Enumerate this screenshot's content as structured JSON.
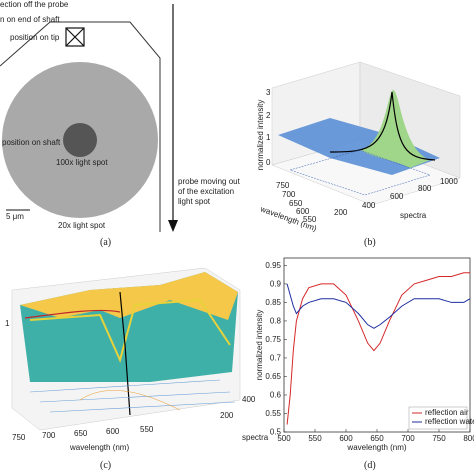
{
  "panel_a": {
    "labels": [
      "ection off the probe",
      "n on end of shaft",
      "position on tip",
      "position on shaft",
      "100x light spot",
      "5 μm",
      "20x light spot"
    ],
    "arrow_label": [
      "probe moving out",
      "of the excitation",
      "light spot"
    ],
    "caption": "(a)"
  },
  "panel_b": {
    "z_label": "normalized intensity",
    "x_label": "wavelength (nm)",
    "y_label": "spectra",
    "z_ticks": [
      "0",
      "1",
      "2",
      "3"
    ],
    "x_ticks": [
      "750",
      "700",
      "650",
      "600",
      "550"
    ],
    "y_ticks": [
      "200",
      "400",
      "600",
      "800",
      "1000"
    ],
    "caption": "(b)"
  },
  "panel_c": {
    "x_label": "wavelength (nm)",
    "y_label": "spectra",
    "z_ticks": [
      "1"
    ],
    "x_ticks": [
      "750",
      "700",
      "650",
      "600",
      "550"
    ],
    "y_ticks": [
      "200",
      "400"
    ],
    "caption": "(c)"
  },
  "chart_data": {
    "type": "line",
    "xlabel": "wavelength (nm)",
    "ylabel": "normalized intensity",
    "x": [
      505,
      510,
      515,
      520,
      530,
      540,
      560,
      580,
      600,
      620,
      635,
      645,
      655,
      670,
      690,
      710,
      730,
      750,
      770,
      790,
      800
    ],
    "series": [
      {
        "name": "reflection air",
        "color": "#d62728",
        "values": [
          0.52,
          0.6,
          0.72,
          0.8,
          0.86,
          0.89,
          0.9,
          0.9,
          0.87,
          0.8,
          0.74,
          0.72,
          0.74,
          0.8,
          0.87,
          0.9,
          0.91,
          0.92,
          0.92,
          0.93,
          0.93
        ]
      },
      {
        "name": "reflection water",
        "color": "#1f2f9f",
        "values": [
          0.9,
          0.87,
          0.84,
          0.82,
          0.84,
          0.85,
          0.86,
          0.86,
          0.85,
          0.82,
          0.79,
          0.78,
          0.79,
          0.81,
          0.84,
          0.86,
          0.86,
          0.86,
          0.85,
          0.85,
          0.86
        ]
      }
    ],
    "xlim": [
      500,
      800
    ],
    "xticks": [
      500,
      550,
      600,
      650,
      700,
      750,
      800
    ],
    "ylim": [
      0.5,
      0.97
    ],
    "yticks": [
      0.5,
      0.55,
      0.6,
      0.65,
      0.7,
      0.75,
      0.8,
      0.85,
      0.9,
      0.95
    ],
    "legend": "lower right",
    "caption": "(d)"
  }
}
